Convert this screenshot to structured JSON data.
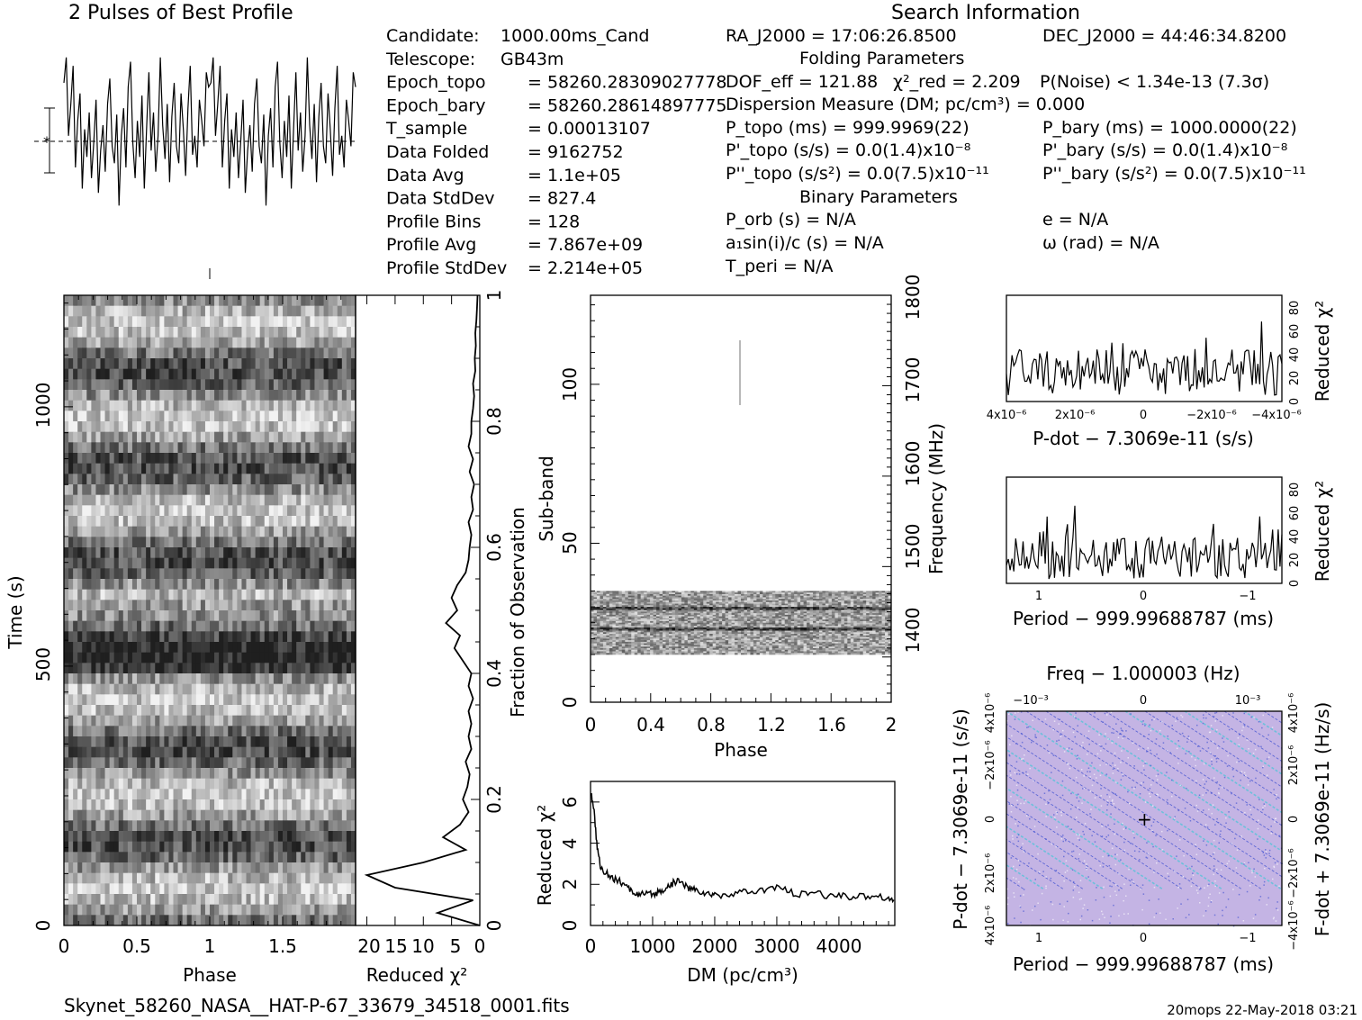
{
  "titles": {
    "profile": "2 Pulses of Best Profile",
    "search": "Search Information",
    "folding": "Folding Parameters",
    "binary": "Binary Parameters"
  },
  "candidate_info": [
    {
      "label": "Candidate:",
      "value": "1000.00ms_Cand"
    },
    {
      "label": "Telescope:",
      "value": "GB43m"
    },
    {
      "label": "Epoch_topo",
      "value": "= 58260.28309027778"
    },
    {
      "label": "Epoch_bary",
      "value": "= 58260.28614897775"
    },
    {
      "label": "T_sample",
      "value": "= 0.00013107"
    },
    {
      "label": "Data Folded",
      "value": "= 9162752"
    },
    {
      "label": "Data Avg",
      "value": "= 1.1e+05"
    },
    {
      "label": "Data StdDev",
      "value": "= 827.4"
    },
    {
      "label": "Profile Bins",
      "value": "= 128"
    },
    {
      "label": "Profile Avg",
      "value": "= 7.867e+09"
    },
    {
      "label": "Profile StdDev",
      "value": "= 2.214e+05"
    }
  ],
  "search_info": {
    "ra": "RA_J2000 = 17:06:26.8500",
    "dec": "DEC_J2000 = 44:46:34.8200",
    "dof": "DOF_eff = 121.88",
    "chi2": "χ²_red = 2.209",
    "pnoise": "P(Noise) < 1.34e-13 (7.3σ)",
    "dm": "Dispersion Measure (DM; pc/cm³) = 0.000",
    "p_topo": "P_topo (ms) = 999.9969(22)",
    "p_bary": "P_bary (ms) = 1000.0000(22)",
    "pd_topo": "P'_topo (s/s) = 0.0(1.4)x10⁻⁸",
    "pd_bary": "P'_bary (s/s) = 0.0(1.4)x10⁻⁸",
    "pdd_topo": "P''_topo (s/s²) = 0.0(7.5)x10⁻¹¹",
    "pdd_bary": "P''_bary (s/s²) = 0.0(7.5)x10⁻¹¹",
    "p_orb": "P_orb (s) = N/A",
    "e": "e = N/A",
    "a1sini": "a₁sin(i)/c (s) = N/A",
    "omega": "ω (rad) = N/A",
    "t_peri": "T_peri = N/A"
  },
  "footer": {
    "filename": "Skynet_58260_NASA__HAT-P-67_33679_34518_0001.fits",
    "stamp": "20mops 22-May-2018 03:21"
  },
  "chart_data": [
    {
      "id": "pulse_profile",
      "type": "line",
      "title": "2 Pulses of Best Profile",
      "x_range": [
        0,
        2
      ],
      "y_estimate": [
        0.8,
        0.92,
        0.55,
        0.7,
        0.88,
        0.4,
        0.62,
        0.75,
        0.3,
        0.58,
        0.45,
        0.66,
        0.35,
        0.52,
        0.72,
        0.28,
        0.48,
        0.6,
        0.38,
        0.7,
        0.82,
        0.5,
        0.42,
        0.65,
        0.22,
        0.55,
        0.68,
        0.4,
        0.78,
        0.9,
        0.52,
        0.35,
        0.62,
        0.45,
        0.74,
        0.3,
        0.58,
        0.85,
        0.48,
        0.66,
        0.38,
        0.55,
        0.92,
        0.6,
        0.44,
        0.7,
        0.33,
        0.64,
        0.8,
        0.5,
        0.42,
        0.75,
        0.58,
        0.36,
        0.68,
        0.88,
        0.46,
        0.55,
        0.4,
        0.72,
        0.62,
        0.5,
        0.85,
        0.78,
        0.8,
        0.92,
        0.55,
        0.7,
        0.88,
        0.4,
        0.62,
        0.75,
        0.3,
        0.58,
        0.45,
        0.66,
        0.35,
        0.52,
        0.72,
        0.28,
        0.48,
        0.6,
        0.38,
        0.7,
        0.82,
        0.5,
        0.42,
        0.65,
        0.22,
        0.55,
        0.68,
        0.4,
        0.78,
        0.9,
        0.52,
        0.35,
        0.62,
        0.45,
        0.74,
        0.3,
        0.58,
        0.85,
        0.48,
        0.66,
        0.38,
        0.55,
        0.92,
        0.6,
        0.44,
        0.7,
        0.33,
        0.64,
        0.8,
        0.5,
        0.42,
        0.75,
        0.58,
        0.36,
        0.68,
        0.88,
        0.46,
        0.55,
        0.4,
        0.72,
        0.62,
        0.5,
        0.85,
        0.78
      ]
    },
    {
      "id": "time_phase",
      "type": "heatmap",
      "xlabel": "Phase",
      "ylabel": "Time (s)",
      "x_ticks": [
        "0",
        "0.5",
        "1",
        "1.5"
      ],
      "y_ticks": [
        "0",
        "500",
        "1000"
      ],
      "x_range": [
        0,
        2
      ],
      "y_range": [
        0,
        1200
      ]
    },
    {
      "id": "chi2_vs_time",
      "type": "line",
      "xlabel": "Reduced χ²",
      "ylabel": "Fraction of Observation",
      "x_ticks": [
        "20",
        "15",
        "10",
        "5",
        "0"
      ],
      "y_ticks": [
        "0",
        "0.2",
        "0.4",
        "0.6",
        "0.8",
        "1"
      ],
      "x_range": [
        22,
        0
      ],
      "fraction": [
        0.0,
        0.02,
        0.04,
        0.06,
        0.08,
        0.1,
        0.12,
        0.14,
        0.16,
        0.18,
        0.2,
        0.22,
        0.24,
        0.26,
        0.28,
        0.3,
        0.32,
        0.34,
        0.36,
        0.38,
        0.4,
        0.42,
        0.44,
        0.46,
        0.48,
        0.5,
        0.52,
        0.54,
        0.56,
        0.58,
        0.6,
        0.62,
        0.64,
        0.66,
        0.68,
        0.7,
        0.72,
        0.74,
        0.76,
        0.78,
        0.8,
        0.82,
        0.84,
        0.86,
        0.88,
        0.9,
        0.92,
        0.94,
        0.96,
        0.98,
        1.0
      ],
      "chi2": [
        0.0,
        7.5,
        1.2,
        15.0,
        20.0,
        10.0,
        2.5,
        6.5,
        3.5,
        2.0,
        3.0,
        2.2,
        1.8,
        2.5,
        1.5,
        2.0,
        1.5,
        2.0,
        1.2,
        2.0,
        1.5,
        3.0,
        4.5,
        3.5,
        6.0,
        4.0,
        5.0,
        4.0,
        2.5,
        2.0,
        1.8,
        1.5,
        2.0,
        1.2,
        1.5,
        1.0,
        1.8,
        1.2,
        2.0,
        1.5,
        1.5,
        1.2,
        1.0,
        1.2,
        0.8,
        0.9,
        0.7,
        0.8,
        0.6,
        0.5,
        0.4
      ]
    },
    {
      "id": "subband_phase",
      "type": "heatmap",
      "xlabel": "Phase",
      "ylabel": "Sub-band",
      "y2label": "Frequency (MHz)",
      "x_ticks": [
        "0",
        "0.4",
        "0.8",
        "1.2",
        "1.6",
        "2"
      ],
      "y_ticks": [
        "0",
        "50",
        "100"
      ],
      "y2_ticks": [
        "1400",
        "1500",
        "1600",
        "1700",
        "1800"
      ],
      "x_range": [
        0,
        2
      ],
      "y_range": [
        0,
        128
      ],
      "y2_range": [
        1350,
        1800
      ],
      "filled_subbands": [
        15,
        35
      ]
    },
    {
      "id": "chi2_vs_dm",
      "type": "line",
      "xlabel": "DM (pc/cm³)",
      "ylabel": "Reduced χ²",
      "x_ticks": [
        "0",
        "1000",
        "2000",
        "3000",
        "4000"
      ],
      "y_ticks": [
        "0",
        "2",
        "4",
        "6"
      ],
      "x_range": [
        0,
        4900
      ],
      "y_range": [
        0,
        7
      ],
      "x": [
        0,
        50,
        100,
        150,
        200,
        300,
        400,
        500,
        600,
        700,
        800,
        900,
        1000,
        1100,
        1200,
        1300,
        1400,
        1500,
        1600,
        1700,
        1800,
        1900,
        2000,
        2200,
        2400,
        2600,
        2800,
        3000,
        3200,
        3400,
        3600,
        3800,
        4000,
        4200,
        4400,
        4600,
        4800,
        4900
      ],
      "y": [
        6.5,
        5.8,
        4.0,
        3.0,
        2.6,
        2.5,
        2.2,
        2.1,
        1.8,
        1.6,
        1.5,
        1.5,
        1.5,
        1.6,
        1.8,
        2.0,
        2.2,
        2.0,
        1.8,
        1.7,
        1.6,
        1.5,
        1.5,
        1.5,
        1.6,
        1.6,
        1.7,
        1.9,
        1.6,
        1.5,
        1.6,
        1.4,
        1.5,
        1.4,
        1.4,
        1.5,
        1.3,
        1.2
      ]
    },
    {
      "id": "chi2_vs_pdot",
      "type": "line",
      "xlabel": "P-dot − 7.3069e-11 (s/s)",
      "ylabel": "Reduced χ²",
      "x_ticks": [
        "4x10⁻⁶",
        "2x10⁻⁶",
        "0",
        "−2x10⁻⁶",
        "−4x10⁻⁶"
      ],
      "y_ticks": [
        "0",
        "20",
        "40",
        "60",
        "80"
      ],
      "y_range": [
        0,
        90
      ]
    },
    {
      "id": "chi2_vs_period",
      "type": "line",
      "xlabel": "Period − 999.99688787 (ms)",
      "ylabel": "Reduced χ²",
      "x_ticks": [
        "1",
        "0",
        "−1"
      ],
      "y_ticks": [
        "0",
        "20",
        "40",
        "60",
        "80"
      ],
      "y_range": [
        0,
        90
      ]
    },
    {
      "id": "p_pdot_plane",
      "type": "heatmap",
      "title": "Freq − 1.000003 (Hz)",
      "xlabel": "Period − 999.99688787 (ms)",
      "ylabel": "P-dot − 7.3069e-11 (s/s)",
      "y2label": "F-dot + 7.3069e-11 (Hz/s)",
      "x_ticks": [
        "1",
        "0",
        "−1"
      ],
      "top_ticks": [
        "−10⁻³",
        "0",
        "10⁻³"
      ],
      "y_ticks": [
        "4x10⁻⁶",
        "2x10⁻⁶",
        "0",
        "−2x10⁻⁶",
        "4x10⁻⁶"
      ],
      "y2_ticks": [
        "−4x10⁻⁶",
        "−2x10⁻⁶",
        "0",
        "2x10⁻⁶",
        "4x10⁻⁶"
      ],
      "colors": {
        "background": "#c4b4e4",
        "streak": "#3a4dd0",
        "accent": "#4fc4d8"
      }
    }
  ]
}
